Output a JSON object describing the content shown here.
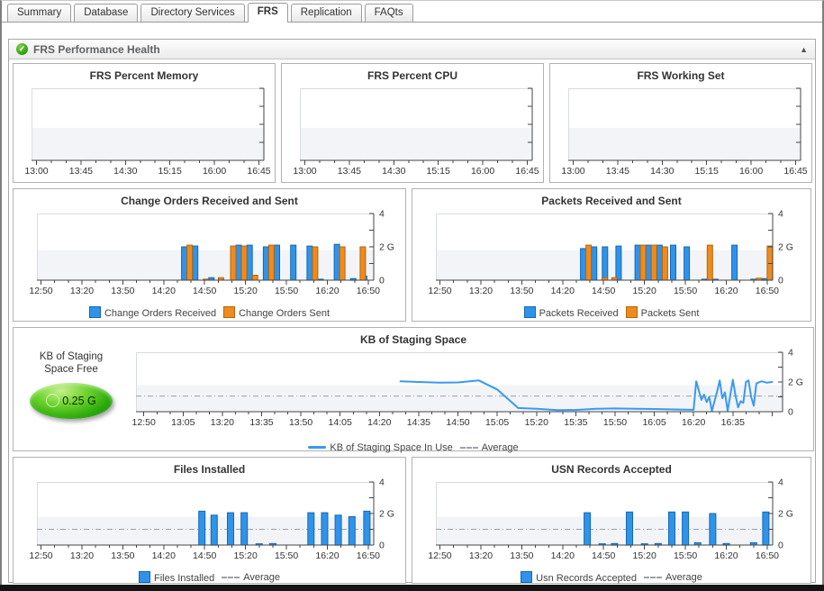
{
  "tabs": [
    {
      "label": "Summary",
      "active": false
    },
    {
      "label": "Database",
      "active": false
    },
    {
      "label": "Directory Services",
      "active": false
    },
    {
      "label": "FRS",
      "active": true
    },
    {
      "label": "Replication",
      "active": false
    },
    {
      "label": "FAQts",
      "active": false
    }
  ],
  "section": {
    "title": "FRS Performance Health",
    "status_icon": "✓",
    "collapse_icon": "▲"
  },
  "gauge": {
    "label1": "KB of Staging",
    "label2": "Space Free",
    "value": "0.25 G"
  },
  "colors": {
    "bar_blue": "#2f93ea",
    "bar_blue_border": "#1668b0",
    "bar_orange": "#ef8b1e",
    "bar_orange_border": "#b2650c",
    "line_blue": "#3b99f0",
    "average": "#9aa0ad",
    "band": "#f2f4f7",
    "axis": "#444444",
    "plot_border": "#d8dcdf",
    "gauge_green": "#2aa80b"
  },
  "chart_data": [
    {
      "id": "mem",
      "row": 1,
      "type": "empty",
      "title": "FRS Percent Memory",
      "x_labels": [
        "13:00",
        "13:45",
        "14:30",
        "15:15",
        "16:00",
        "16:45"
      ],
      "ylim": [
        0,
        4
      ],
      "ytick_labels": [],
      "legend": []
    },
    {
      "id": "cpu",
      "row": 1,
      "type": "empty",
      "title": "FRS Percent CPU",
      "x_labels": [
        "13:00",
        "13:45",
        "14:30",
        "15:15",
        "16:00",
        "16:45"
      ],
      "ylim": [
        0,
        4
      ],
      "ytick_labels": [],
      "legend": []
    },
    {
      "id": "ws",
      "row": 1,
      "type": "empty",
      "title": "FRS Working Set",
      "x_labels": [
        "13:00",
        "13:45",
        "14:30",
        "15:15",
        "16:00",
        "16:45"
      ],
      "ylim": [
        0,
        4
      ],
      "ytick_labels": [],
      "legend": []
    },
    {
      "id": "co",
      "row": 2,
      "type": "bar",
      "title": "Change Orders Received and Sent",
      "x_labels": [
        "12:50",
        "13:20",
        "13:50",
        "14:20",
        "14:50",
        "15:20",
        "15:50",
        "16:20",
        "16:50"
      ],
      "ylim": [
        0,
        4
      ],
      "ytick_labels": [
        [
          0,
          "0"
        ],
        [
          2,
          "2 G"
        ],
        [
          4,
          "4"
        ]
      ],
      "series": [
        {
          "name": "Change Orders Received",
          "color": "blue",
          "data": [
            [
              107,
              2.0
            ],
            [
              115,
              2.05
            ],
            [
              127,
              0.15
            ],
            [
              147,
              2.1
            ],
            [
              155,
              2.1
            ],
            [
              167,
              2.0
            ],
            [
              175,
              2.1
            ],
            [
              187,
              2.1
            ],
            [
              199,
              2.05
            ],
            [
              207,
              0.06
            ],
            [
              219,
              2.15
            ],
            [
              231,
              0.1
            ],
            [
              239,
              0.25
            ]
          ]
        },
        {
          "name": "Change Orders Sent",
          "color": "orange",
          "data": [
            [
              107,
              2.1
            ],
            [
              119,
              0.06
            ],
            [
              130,
              0.15
            ],
            [
              139,
              2.05
            ],
            [
              147,
              2.05
            ],
            [
              155,
              0.3
            ],
            [
              167,
              2.1
            ],
            [
              199,
              2.0
            ],
            [
              219,
              2.0
            ],
            [
              234,
              2.0
            ]
          ]
        }
      ],
      "legend": [
        {
          "type": "bar",
          "color": "blue",
          "label": "Change Orders Received"
        },
        {
          "type": "bar",
          "color": "orange",
          "label": "Change Orders Sent"
        }
      ]
    },
    {
      "id": "pk",
      "row": 2,
      "type": "bar",
      "title": "Packets Received and Sent",
      "x_labels": [
        "12:50",
        "13:20",
        "13:50",
        "14:20",
        "14:50",
        "15:20",
        "15:50",
        "16:20",
        "16:50"
      ],
      "ylim": [
        0,
        4
      ],
      "ytick_labels": [
        [
          0,
          "0"
        ],
        [
          2,
          "2 G"
        ],
        [
          4,
          "4"
        ]
      ],
      "series": [
        {
          "name": "Packets Received",
          "color": "blue",
          "data": [
            [
              107,
              1.9
            ],
            [
              115,
              2.0
            ],
            [
              123,
              2.0
            ],
            [
              133,
              2.05
            ],
            [
              147,
              2.1
            ],
            [
              155,
              2.1
            ],
            [
              163,
              2.1
            ],
            [
              173,
              2.1
            ],
            [
              183,
              2.0
            ],
            [
              196,
              0.06
            ],
            [
              204,
              0.06
            ],
            [
              218,
              2.1
            ],
            [
              232,
              0.06
            ],
            [
              240,
              0.1
            ]
          ]
        },
        {
          "name": "Packets Sent",
          "color": "orange",
          "data": [
            [
              107,
              2.1
            ],
            [
              119,
              0.15
            ],
            [
              126,
              0.15
            ],
            [
              147,
              2.1
            ],
            [
              155,
              2.1
            ],
            [
              163,
              2.0
            ],
            [
              196,
              2.1
            ],
            [
              232,
              0.12
            ],
            [
              240,
              2.05
            ]
          ]
        }
      ],
      "legend": [
        {
          "type": "bar",
          "color": "blue",
          "label": "Packets Received"
        },
        {
          "type": "bar",
          "color": "orange",
          "label": "Packets Sent"
        }
      ]
    },
    {
      "id": "stg",
      "row": 3,
      "type": "line",
      "title": "KB of Staging Space",
      "x_labels": [
        "12:50",
        "13:05",
        "13:20",
        "13:35",
        "13:50",
        "14:05",
        "14:20",
        "14:35",
        "14:50",
        "15:05",
        "15:20",
        "15:35",
        "15:50",
        "16:05",
        "16:20",
        "16:35"
      ],
      "ylim": [
        0,
        4
      ],
      "ytick_labels": [
        [
          0,
          "0"
        ],
        [
          2,
          "2 G"
        ],
        [
          4,
          "4"
        ]
      ],
      "average": 1.05,
      "points": [
        [
          98,
          2.05
        ],
        [
          105,
          2.0
        ],
        [
          113,
          1.95
        ],
        [
          120,
          1.97
        ],
        [
          128,
          2.1
        ],
        [
          135,
          1.5
        ],
        [
          143,
          0.25
        ],
        [
          150,
          0.2
        ],
        [
          158,
          0.1
        ],
        [
          165,
          0.12
        ],
        [
          173,
          0.2
        ],
        [
          180,
          0.22
        ],
        [
          188,
          0.2
        ],
        [
          195,
          0.18
        ],
        [
          203,
          0.15
        ],
        [
          210,
          0.13
        ],
        [
          211,
          2.05
        ],
        [
          213,
          0.8
        ],
        [
          214,
          1.15
        ],
        [
          215,
          0.65
        ],
        [
          216,
          1.0
        ],
        [
          217,
          0.05
        ],
        [
          219,
          1.35
        ],
        [
          220,
          2.1
        ],
        [
          221,
          0.9
        ],
        [
          222,
          1.3
        ],
        [
          223,
          0.05
        ],
        [
          225,
          2.15
        ],
        [
          226,
          1.1
        ],
        [
          227,
          0.3
        ],
        [
          228,
          0.7
        ],
        [
          229,
          0.6
        ],
        [
          230,
          2.0
        ],
        [
          231,
          2.1
        ],
        [
          232,
          1.0
        ],
        [
          233,
          0.4
        ],
        [
          234,
          1.9
        ],
        [
          236,
          2.05
        ],
        [
          238,
          1.95
        ],
        [
          240,
          2.0
        ]
      ],
      "legend": [
        {
          "type": "line",
          "color": "blue",
          "label": "KB of Staging Space In Use"
        },
        {
          "type": "dash",
          "label": "Average"
        }
      ]
    },
    {
      "id": "fi",
      "row": 4,
      "type": "bar",
      "title": "Files Installed",
      "x_labels": [
        "12:50",
        "13:20",
        "13:50",
        "14:20",
        "14:50",
        "15:20",
        "15:50",
        "16:20",
        "16:50"
      ],
      "ylim": [
        0,
        4
      ],
      "ytick_labels": [
        [
          0,
          "0"
        ],
        [
          2,
          "2 G"
        ],
        [
          4,
          "4"
        ]
      ],
      "average": 1.0,
      "series": [
        {
          "name": "Files Installed",
          "color": "blue",
          "data": [
            [
              118,
              2.15
            ],
            [
              127,
              1.9
            ],
            [
              139,
              2.05
            ],
            [
              149,
              2.05
            ],
            [
              160,
              0.08
            ],
            [
              170,
              0.1
            ],
            [
              198,
              2.05
            ],
            [
              208,
              2.05
            ],
            [
              218,
              1.9
            ],
            [
              228,
              1.8
            ],
            [
              239,
              2.15
            ]
          ]
        }
      ],
      "legend": [
        {
          "type": "bar",
          "color": "blue",
          "label": "Files Installed"
        },
        {
          "type": "dash",
          "label": "Average"
        }
      ]
    },
    {
      "id": "usn",
      "row": 4,
      "type": "bar",
      "title": "USN Records Accepted",
      "x_labels": [
        "12:50",
        "13:20",
        "13:50",
        "14:20",
        "14:50",
        "15:20",
        "15:50",
        "16:20",
        "16:50"
      ],
      "ylim": [
        0,
        4
      ],
      "ytick_labels": [
        [
          0,
          "0"
        ],
        [
          2,
          "2 G"
        ],
        [
          4,
          "4"
        ]
      ],
      "average": 1.0,
      "series": [
        {
          "name": "Usn Records Accepted",
          "color": "blue",
          "data": [
            [
              108,
              2.05
            ],
            [
              119,
              0.08
            ],
            [
              128,
              0.1
            ],
            [
              139,
              2.1
            ],
            [
              150,
              0.08
            ],
            [
              160,
              0.1
            ],
            [
              170,
              2.1
            ],
            [
              180,
              2.1
            ],
            [
              189,
              0.15
            ],
            [
              200,
              2.0
            ],
            [
              210,
              0.1
            ],
            [
              230,
              0.15
            ],
            [
              239,
              2.1
            ]
          ]
        }
      ],
      "legend": [
        {
          "type": "bar",
          "color": "blue",
          "label": "Usn Records Accepted"
        },
        {
          "type": "dash",
          "label": "Average"
        }
      ]
    }
  ]
}
